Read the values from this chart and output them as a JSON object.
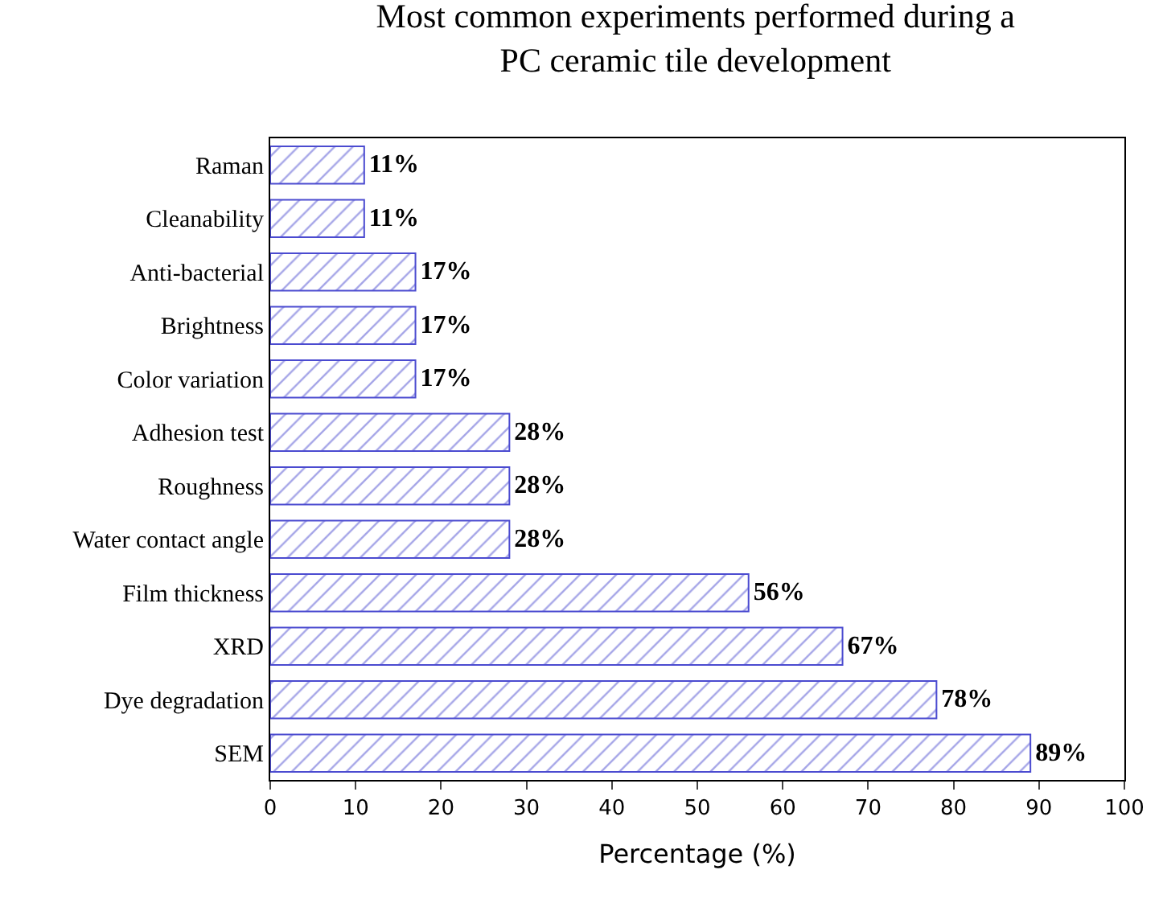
{
  "chart_data": {
    "type": "bar",
    "orientation": "horizontal",
    "title": "Most common experiments performed during a\nPC ceramic tile development",
    "xlabel": "Percentage (%)",
    "categories": [
      "Raman",
      "Cleanability",
      "Anti-bacterial",
      "Brightness",
      "Color variation",
      "Adhesion test",
      "Roughness",
      "Water contact angle",
      "Film thickness",
      "XRD",
      "Dye degradation",
      "SEM"
    ],
    "values": [
      11,
      11,
      17,
      17,
      17,
      28,
      28,
      28,
      56,
      67,
      78,
      89
    ],
    "value_labels": [
      "11%",
      "11%",
      "17%",
      "17%",
      "17%",
      "28%",
      "28%",
      "28%",
      "56%",
      "67%",
      "78%",
      "89%"
    ],
    "color": "#4b4bd0",
    "xlim": [
      0,
      100
    ],
    "xticks": [
      0,
      10,
      20,
      30,
      40,
      50,
      60,
      70,
      80,
      90,
      100
    ]
  }
}
